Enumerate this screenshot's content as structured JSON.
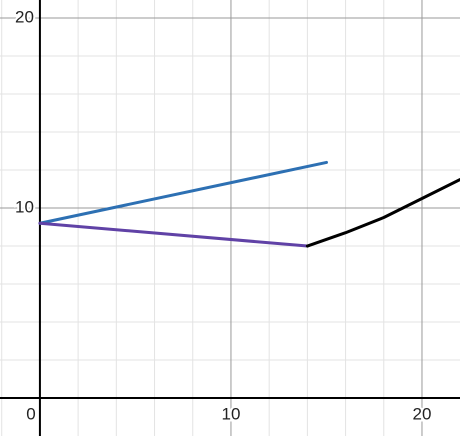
{
  "chart_data": {
    "type": "line",
    "xlim": [
      -2.09,
      21.99
    ],
    "ylim": [
      -2.0,
      20.95
    ],
    "xticks": [
      0,
      10,
      20
    ],
    "yticks": [
      10,
      20
    ],
    "xminorticks": [
      -2,
      2,
      4,
      6,
      8,
      12,
      14,
      16,
      18
    ],
    "yminorticks": [
      2,
      4,
      6,
      8,
      12,
      14,
      16,
      18
    ],
    "grid": true,
    "series": [
      {
        "color": "#2d70b3",
        "x": [
          0,
          15
        ],
        "values": [
          9.2,
          12.4
        ]
      },
      {
        "color": "#6042a6",
        "x": [
          0,
          14
        ],
        "values": [
          9.2,
          8.0
        ]
      },
      {
        "color": "#000000",
        "x": [
          14,
          16,
          18,
          20,
          22
        ],
        "values": [
          8.0,
          8.7,
          9.5,
          10.5,
          11.5
        ]
      }
    ]
  }
}
